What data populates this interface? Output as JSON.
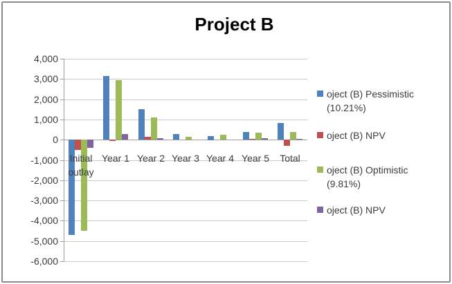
{
  "frame": {
    "background": "#ffffff",
    "border_color": "#8a8a8a"
  },
  "chart_data": {
    "type": "bar",
    "title": "Project B",
    "categories": [
      "Initial outlay",
      "Year 1",
      "Year 2",
      "Year 3",
      "Year 4",
      "Year 5",
      "Total"
    ],
    "series": [
      {
        "key": "pessimistic",
        "name": "oject (B) Pessimistic (10.21%)",
        "color": "#4F81BD",
        "values": [
          -4700,
          3150,
          1500,
          280,
          190,
          370,
          830
        ]
      },
      {
        "key": "npv-1",
        "name": "oject (B) NPV",
        "color": "#C0504D",
        "values": [
          -500,
          -60,
          150,
          0,
          0,
          50,
          -300
        ]
      },
      {
        "key": "optimistic",
        "name": "oject (B) Optimistic (9.81%)",
        "color": "#9BBB59",
        "values": [
          -4500,
          2950,
          1100,
          140,
          250,
          340,
          390
        ]
      },
      {
        "key": "npv-2",
        "name": "oject (B) NPV",
        "color": "#8064A2",
        "values": [
          -400,
          280,
          80,
          0,
          0,
          60,
          40
        ]
      }
    ],
    "ylim": [
      -6000,
      4000
    ],
    "ytick_step": 1000,
    "ytick_labels": [
      "4,000",
      "3,000",
      "2,000",
      "1,000",
      "0",
      "-1,000",
      "-2,000",
      "-3,000",
      "-4,000",
      "-5,000",
      "-6,000"
    ],
    "grid": true,
    "legend_position": "right",
    "gridline_color": "#c9c9c9",
    "axis_color": "#9b9b9b",
    "text_color": "#3b3b3b"
  }
}
